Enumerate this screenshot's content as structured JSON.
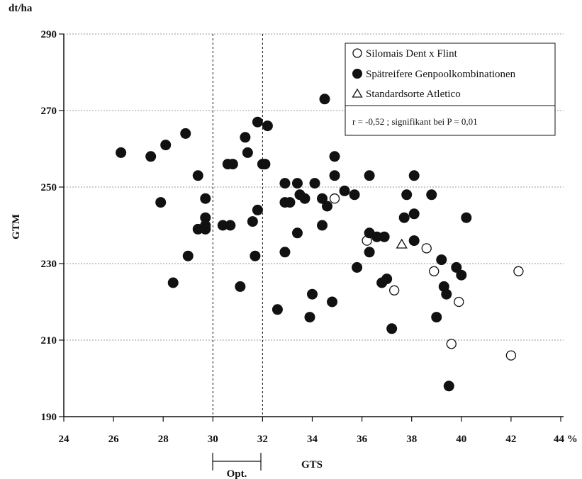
{
  "chart_data": {
    "type": "scatter",
    "xlabel": "GTS",
    "ylabel": "GTM",
    "y_unit": "dt/ha",
    "x_unit": "%",
    "xlim": [
      24,
      44
    ],
    "ylim": [
      190,
      290
    ],
    "x_ticks": [
      "24",
      "26",
      "28",
      "30",
      "32",
      "34",
      "36",
      "38",
      "40",
      "42",
      "44"
    ],
    "y_ticks": [
      "190",
      "210",
      "230",
      "250",
      "270",
      "290"
    ],
    "grid": "horizontal dotted",
    "legend_position": "top-right",
    "optimum": {
      "label": "Opt.",
      "range": [
        30,
        32
      ]
    },
    "annotation": "r = -0,52 ; signifikant bei P = 0,01",
    "series": [
      {
        "name": "Silomais Dent x Flint",
        "marker": "open-circle",
        "points": [
          [
            34.9,
            247
          ],
          [
            36.2,
            236
          ],
          [
            37.3,
            223
          ],
          [
            38.6,
            234
          ],
          [
            38.9,
            228
          ],
          [
            39.9,
            220
          ],
          [
            39.6,
            209
          ],
          [
            42,
            206
          ],
          [
            42.3,
            228
          ]
        ]
      },
      {
        "name": "Spätreifere Genpoolkombinationen",
        "marker": "filled-circle",
        "points": [
          [
            26.3,
            259
          ],
          [
            27.5,
            258
          ],
          [
            28.1,
            261
          ],
          [
            27.9,
            246
          ],
          [
            28.9,
            264
          ],
          [
            29.0,
            232
          ],
          [
            28.4,
            225
          ],
          [
            29.4,
            253
          ],
          [
            29.4,
            239
          ],
          [
            29.7,
            247
          ],
          [
            29.7,
            242
          ],
          [
            29.7,
            240
          ],
          [
            29.7,
            239
          ],
          [
            30.4,
            240
          ],
          [
            30.6,
            256
          ],
          [
            30.7,
            240
          ],
          [
            30.8,
            256
          ],
          [
            31.1,
            224
          ],
          [
            31.3,
            263
          ],
          [
            31.4,
            259
          ],
          [
            31.6,
            241
          ],
          [
            31.7,
            232
          ],
          [
            31.8,
            267
          ],
          [
            31.8,
            244
          ],
          [
            32.0,
            256
          ],
          [
            32.1,
            256
          ],
          [
            32.2,
            266
          ],
          [
            32.6,
            218
          ],
          [
            32.9,
            251
          ],
          [
            32.9,
            246
          ],
          [
            32.9,
            233
          ],
          [
            33.1,
            246
          ],
          [
            33.4,
            251
          ],
          [
            33.4,
            238
          ],
          [
            33.5,
            248
          ],
          [
            33.7,
            247
          ],
          [
            33.9,
            216
          ],
          [
            34.0,
            222
          ],
          [
            34.1,
            251
          ],
          [
            34.4,
            247
          ],
          [
            34.4,
            240
          ],
          [
            34.5,
            273
          ],
          [
            34.6,
            245
          ],
          [
            34.8,
            220
          ],
          [
            34.9,
            253
          ],
          [
            34.9,
            258
          ],
          [
            35.3,
            249
          ],
          [
            35.7,
            248
          ],
          [
            35.8,
            229
          ],
          [
            36.3,
            253
          ],
          [
            36.3,
            238
          ],
          [
            36.3,
            233
          ],
          [
            36.6,
            237
          ],
          [
            36.8,
            225
          ],
          [
            36.9,
            237
          ],
          [
            37.0,
            226
          ],
          [
            37.2,
            213
          ],
          [
            37.7,
            242
          ],
          [
            37.8,
            248
          ],
          [
            38.1,
            253
          ],
          [
            38.1,
            243
          ],
          [
            38.1,
            236
          ],
          [
            38.8,
            248
          ],
          [
            39.0,
            216
          ],
          [
            39.2,
            231
          ],
          [
            39.3,
            224
          ],
          [
            39.4,
            222
          ],
          [
            39.5,
            198
          ],
          [
            39.8,
            229
          ],
          [
            40.0,
            227
          ],
          [
            40.2,
            242
          ]
        ]
      },
      {
        "name": "Standardsorte Atletico",
        "marker": "open-triangle",
        "points": [
          [
            37.6,
            235
          ]
        ]
      }
    ]
  }
}
